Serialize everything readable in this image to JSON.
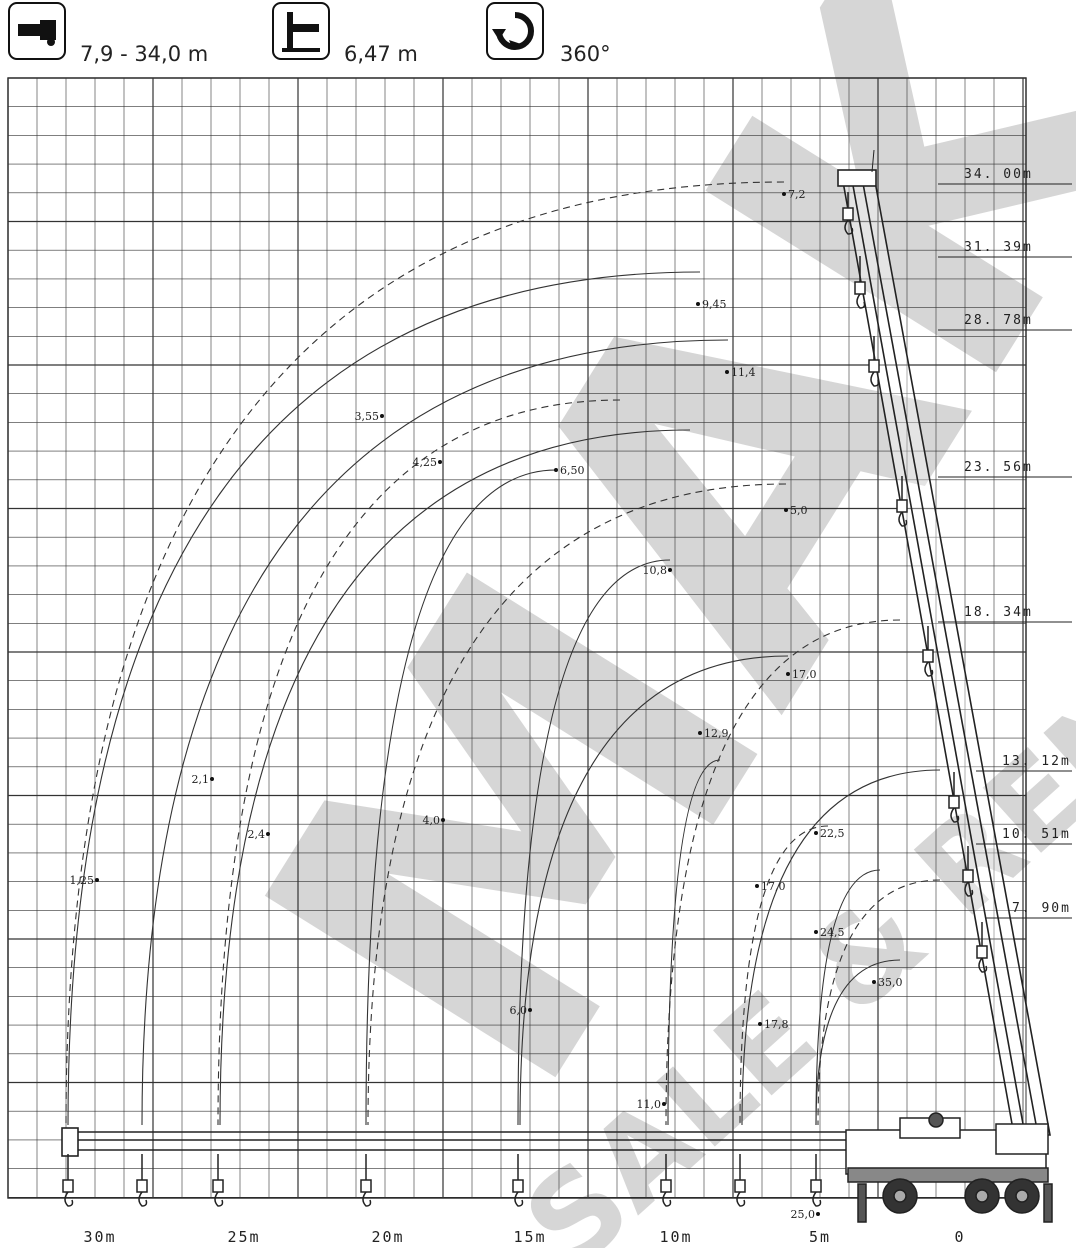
{
  "specs": [
    {
      "icon": "boom-length-icon",
      "value": "7,9 - 34,0 m"
    },
    {
      "icon": "jib-offset-icon",
      "value": "6,47 m"
    },
    {
      "icon": "rotation-icon",
      "value": "360°"
    }
  ],
  "heights": [
    "34. 00m",
    "31. 39m",
    "28. 78m",
    "23. 56m",
    "18. 34m",
    "13. 12m",
    "10. 51m",
    "7. 90m"
  ],
  "x_axis": [
    "30m",
    "25m",
    "20m",
    "15m",
    "10m",
    "5m",
    "0"
  ],
  "load_points": [
    "7,2",
    "9,45",
    "11,4",
    "3,55",
    "4,25",
    "6,50",
    "5,0",
    "10,8",
    "17,0",
    "12,9",
    "2,1",
    "2,4",
    "4,0",
    "22,5",
    "17,0",
    "1,25",
    "24,5",
    "35,0",
    "6,0",
    "17,8",
    "11,0",
    "25,0"
  ],
  "watermark": {
    "logo": "MAK",
    "tagline": "SALE & RENTAL"
  }
}
